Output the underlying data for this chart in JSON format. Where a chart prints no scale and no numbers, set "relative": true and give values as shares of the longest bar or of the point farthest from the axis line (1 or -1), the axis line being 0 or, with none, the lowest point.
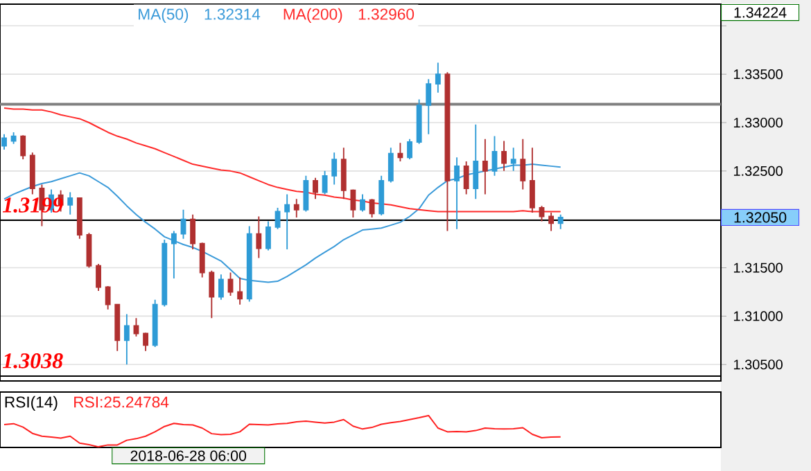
{
  "chart_data": [
    {
      "type": "candlestick",
      "categories": [
        null,
        null,
        null,
        null,
        null,
        null,
        null,
        null,
        null,
        null,
        null,
        null,
        null,
        null,
        null,
        null,
        null,
        null,
        null,
        null,
        null,
        null,
        null,
        null,
        null,
        null,
        null,
        null,
        null,
        null,
        null,
        null,
        null,
        null,
        null,
        null,
        null,
        null,
        null,
        null,
        null,
        null,
        null,
        null,
        null,
        null,
        null,
        null,
        null,
        null,
        null,
        null,
        null,
        null,
        null,
        null,
        null,
        null,
        null,
        null
      ],
      "ohlc": [
        [
          1.3276,
          1.3288,
          1.3272,
          1.3284
        ],
        [
          1.3281,
          1.329,
          1.3278,
          1.3286
        ],
        [
          1.3286,
          1.3287,
          1.3262,
          1.3266
        ],
        [
          1.3266,
          1.3269,
          1.3226,
          1.3232
        ],
        [
          1.3232,
          1.3236,
          1.3193,
          1.321
        ],
        [
          1.321,
          1.3231,
          1.3207,
          1.3225
        ],
        [
          1.3225,
          1.323,
          1.3208,
          1.3215
        ],
        [
          1.3215,
          1.3228,
          1.3205,
          1.3222
        ],
        [
          1.3222,
          1.3222,
          1.318,
          1.3184
        ],
        [
          1.3184,
          1.3186,
          1.315,
          1.3152
        ],
        [
          1.3152,
          1.3154,
          1.3126,
          1.313
        ],
        [
          1.313,
          1.3131,
          1.3107,
          1.3112
        ],
        [
          1.3112,
          1.3112,
          1.3064,
          1.3075
        ],
        [
          1.3075,
          1.3102,
          1.305,
          1.309
        ],
        [
          1.309,
          1.3098,
          1.3079,
          1.3082
        ],
        [
          1.3082,
          1.3083,
          1.3064,
          1.307
        ],
        [
          1.307,
          1.3117,
          1.3068,
          1.3112
        ],
        [
          1.3112,
          1.3179,
          1.311,
          1.3175
        ],
        [
          1.3175,
          1.3188,
          1.3139,
          1.3185
        ],
        [
          1.3185,
          1.321,
          1.318,
          1.32
        ],
        [
          1.32,
          1.3205,
          1.3169,
          1.3175
        ],
        [
          1.3175,
          1.3176,
          1.314,
          1.3145
        ],
        [
          1.3145,
          1.3147,
          1.3098,
          1.312
        ],
        [
          1.312,
          1.3143,
          1.3117,
          1.3138
        ],
        [
          1.3138,
          1.3145,
          1.3121,
          1.3125
        ],
        [
          1.3125,
          1.314,
          1.3112,
          1.3118
        ],
        [
          1.3118,
          1.3193,
          1.3115,
          1.3185
        ],
        [
          1.3185,
          1.3203,
          1.316,
          1.317
        ],
        [
          1.317,
          1.3198,
          1.3168,
          1.3192
        ],
        [
          1.3192,
          1.3212,
          1.319,
          1.3208
        ],
        [
          1.3208,
          1.3226,
          1.3169,
          1.3215
        ],
        [
          1.3215,
          1.3221,
          1.3202,
          1.321
        ],
        [
          1.321,
          1.3245,
          1.3208,
          1.324
        ],
        [
          1.324,
          1.3243,
          1.3221,
          1.3228
        ],
        [
          1.3228,
          1.325,
          1.3226,
          1.3245
        ],
        [
          1.3245,
          1.3269,
          1.3236,
          1.3262
        ],
        [
          1.3262,
          1.3274,
          1.3221,
          1.323
        ],
        [
          1.323,
          1.3231,
          1.3202,
          1.321
        ],
        [
          1.321,
          1.3226,
          1.3208,
          1.322
        ],
        [
          1.322,
          1.3221,
          1.3202,
          1.3206
        ],
        [
          1.3206,
          1.3245,
          1.3204,
          1.324
        ],
        [
          1.324,
          1.3274,
          1.3238,
          1.3268
        ],
        [
          1.3268,
          1.3279,
          1.326,
          1.3264
        ],
        [
          1.3264,
          1.3283,
          1.3262,
          1.328
        ],
        [
          1.328,
          1.3324,
          1.3278,
          1.3318
        ],
        [
          1.3318,
          1.3345,
          1.3288,
          1.334
        ],
        [
          1.334,
          1.3362,
          1.3331,
          1.335
        ],
        [
          1.335,
          1.3352,
          1.3188,
          1.324
        ],
        [
          1.324,
          1.3264,
          1.319,
          1.3255
        ],
        [
          1.3255,
          1.326,
          1.3226,
          1.3232
        ],
        [
          1.3232,
          1.3298,
          1.3221,
          1.326
        ],
        [
          1.326,
          1.3283,
          1.3226,
          1.325
        ],
        [
          1.325,
          1.3286,
          1.3245,
          1.327
        ],
        [
          1.327,
          1.3281,
          1.325,
          1.3258
        ],
        [
          1.3258,
          1.3274,
          1.325,
          1.3262
        ],
        [
          1.3262,
          1.3283,
          1.3231,
          1.324
        ],
        [
          1.324,
          1.3274,
          1.3207,
          1.3212
        ],
        [
          1.3212,
          1.3214,
          1.3198,
          1.3203
        ],
        [
          1.3203,
          1.3207,
          1.3188,
          1.3196
        ],
        [
          1.3196,
          1.3205,
          1.319,
          1.3202
        ]
      ],
      "colors": [
        "#2e9bd6",
        "#2e9bd6",
        "#b03030",
        "#b03030",
        "#b03030",
        "#2e9bd6",
        "#b03030",
        "#2e9bd6",
        "#b03030",
        "#b03030",
        "#b03030",
        "#b03030",
        "#b03030",
        "#2e9bd6",
        "#b03030",
        "#b03030",
        "#2e9bd6",
        "#2e9bd6",
        "#2e9bd6",
        "#2e9bd6",
        "#b03030",
        "#b03030",
        "#b03030",
        "#2e9bd6",
        "#b03030",
        "#b03030",
        "#2e9bd6",
        "#b03030",
        "#2e9bd6",
        "#2e9bd6",
        "#2e9bd6",
        "#b03030",
        "#2e9bd6",
        "#b03030",
        "#2e9bd6",
        "#2e9bd6",
        "#b03030",
        "#b03030",
        "#2e9bd6",
        "#b03030",
        "#2e9bd6",
        "#2e9bd6",
        "#b03030",
        "#2e9bd6",
        "#2e9bd6",
        "#2e9bd6",
        "#2e9bd6",
        "#b03030",
        "#2e9bd6",
        "#b03030",
        "#2e9bd6",
        "#b03030",
        "#2e9bd6",
        "#b03030",
        "#2e9bd6",
        "#b03030",
        "#b03030",
        "#b03030",
        "#b03030",
        "#2e9bd6"
      ],
      "series": [
        {
          "type": "line",
          "name": "MA(50)",
          "color": "#3a9ad9",
          "values": [
            1.3221,
            1.3226,
            1.323,
            1.3234,
            1.3237,
            1.3239,
            1.3242,
            1.3245,
            1.3248,
            1.3245,
            1.3239,
            1.3233,
            1.3224,
            1.3214,
            1.3205,
            1.3197,
            1.319,
            1.3182,
            1.3178,
            1.3174,
            1.3171,
            1.3167,
            1.3162,
            1.3157,
            1.3148,
            1.3139,
            1.3137,
            1.3136,
            1.3135,
            1.3136,
            1.3141,
            1.3147,
            1.3153,
            1.316,
            1.3166,
            1.3172,
            1.3179,
            1.3184,
            1.3189,
            1.319,
            1.3191,
            1.3194,
            1.3197,
            1.3203,
            1.3211,
            1.3225,
            1.3233,
            1.324,
            1.3242,
            1.3246,
            1.3248,
            1.325,
            1.3252,
            1.3254,
            1.3256,
            1.3256,
            1.3257,
            1.3256,
            1.3255,
            1.3254
          ]
        },
        {
          "type": "line",
          "name": "MA(200)",
          "color": "#ff2a2a",
          "values": [
            1.3315,
            1.3314,
            1.3314,
            1.3313,
            1.3313,
            1.3311,
            1.3308,
            1.3306,
            1.3304,
            1.33,
            1.3295,
            1.329,
            1.3286,
            1.3283,
            1.3279,
            1.3276,
            1.3273,
            1.3269,
            1.3265,
            1.3261,
            1.3257,
            1.3255,
            1.3253,
            1.3251,
            1.325,
            1.3248,
            1.3244,
            1.324,
            1.3236,
            1.3233,
            1.3231,
            1.3229,
            1.3228,
            1.3226,
            1.3225,
            1.3223,
            1.3222,
            1.322,
            1.3219,
            1.3217,
            1.3216,
            1.3215,
            1.3213,
            1.3211,
            1.321,
            1.3209,
            1.3208,
            1.3208,
            1.3208,
            1.3208,
            1.3208,
            1.3208,
            1.3208,
            1.3208,
            1.3208,
            1.3209,
            1.3208,
            1.3208,
            1.3208,
            1.3208
          ]
        }
      ],
      "ylim": [
        1.3033,
        1.34224
      ],
      "yticks": [
        {
          "value": 1.305,
          "label": "1.30500"
        },
        {
          "value": 1.31,
          "label": "1.31000"
        },
        {
          "value": 1.315,
          "label": "1.31500"
        },
        {
          "value": 1.32,
          "label": null
        },
        {
          "value": 1.325,
          "label": "1.32500"
        },
        {
          "value": 1.33,
          "label": "1.33000"
        },
        {
          "value": 1.335,
          "label": "1.33500"
        },
        {
          "value": 1.34,
          "label": null
        }
      ],
      "grid": "y",
      "tick_labels": "y",
      "ref_lines": [
        {
          "axis": "y",
          "value": 1.3319,
          "color": "#808080"
        },
        {
          "axis": "y",
          "value": 1.3199,
          "label": "1.3199",
          "color": "#000000"
        },
        {
          "axis": "y",
          "value": 1.3038,
          "label": "1.3038",
          "color": "#000000"
        }
      ],
      "annotations": [
        "1.34224",
        "1.32050",
        "1.32314",
        "1.32960"
      ]
    },
    {
      "type": "line",
      "relative": true,
      "title": "RSI(14)",
      "categories": [
        null,
        null,
        null,
        null,
        null,
        null,
        null,
        null,
        null,
        null,
        null,
        null,
        null,
        null,
        null,
        null,
        null,
        null,
        null,
        null,
        null,
        null,
        null,
        null,
        null,
        null,
        null,
        null,
        null,
        null,
        null,
        null,
        null,
        null,
        null,
        null,
        null,
        null,
        null,
        null,
        null,
        null,
        null,
        null,
        null,
        null,
        null,
        null,
        null,
        null,
        null,
        null,
        null,
        null,
        null,
        null,
        null,
        null,
        null,
        null
      ],
      "tick_labels": false,
      "series": [
        {
          "name": "RSI:25.24784",
          "color": "#ff2020",
          "values": [
            0.71,
            0.74,
            0.63,
            0.43,
            0.34,
            0.31,
            0.28,
            0.34,
            0.12,
            0.07,
            0,
            0.06,
            0.06,
            0.21,
            0.26,
            0.34,
            0.48,
            0.65,
            0.75,
            0.71,
            0.7,
            0.6,
            0.42,
            0.39,
            0.4,
            0.48,
            0.72,
            0.71,
            0.7,
            0.73,
            0.75,
            0.8,
            0.82,
            0.79,
            0.76,
            0.79,
            0.87,
            0.66,
            0.57,
            0.62,
            0.72,
            0.77,
            0.81,
            0.87,
            0.93,
            1,
            0.6,
            0.48,
            0.49,
            0.48,
            0.52,
            0.6,
            0.58,
            0.57,
            0.58,
            0.61,
            0.4,
            0.29,
            0.31,
            0.32
          ]
        }
      ],
      "annotations": [
        "2018-06-28 06:00"
      ]
    }
  ]
}
